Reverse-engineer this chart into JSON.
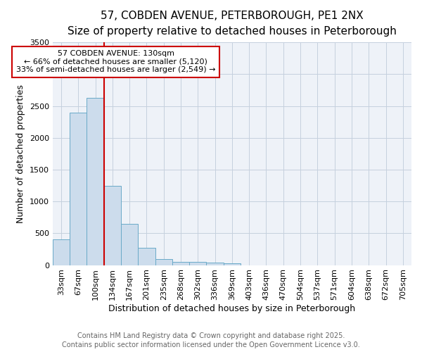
{
  "title1": "57, COBDEN AVENUE, PETERBOROUGH, PE1 2NX",
  "title2": "Size of property relative to detached houses in Peterborough",
  "xlabel": "Distribution of detached houses by size in Peterborough",
  "ylabel": "Number of detached properties",
  "footer1": "Contains HM Land Registry data © Crown copyright and database right 2025.",
  "footer2": "Contains public sector information licensed under the Open Government Licence v3.0.",
  "annotation_line1": "57 COBDEN AVENUE: 130sqm",
  "annotation_line2": "← 66% of detached houses are smaller (5,120)",
  "annotation_line3": "33% of semi-detached houses are larger (2,549) →",
  "bin_labels": [
    "33sqm",
    "67sqm",
    "100sqm",
    "134sqm",
    "167sqm",
    "201sqm",
    "235sqm",
    "268sqm",
    "302sqm",
    "336sqm",
    "369sqm",
    "403sqm",
    "436sqm",
    "470sqm",
    "504sqm",
    "537sqm",
    "571sqm",
    "604sqm",
    "638sqm",
    "672sqm",
    "705sqm"
  ],
  "bar_values": [
    400,
    2400,
    2630,
    1250,
    650,
    270,
    100,
    55,
    50,
    40,
    25,
    0,
    0,
    0,
    0,
    0,
    0,
    0,
    0,
    0,
    0
  ],
  "bar_color": "#ccdcec",
  "bar_edge_color": "#6aaac8",
  "red_line_bin": 3,
  "ylim": [
    0,
    3500
  ],
  "yticks": [
    0,
    500,
    1000,
    1500,
    2000,
    2500,
    3000,
    3500
  ],
  "bg_color": "#eef2f8",
  "grid_color": "#c5d0de",
  "title_fontsize": 11,
  "subtitle_fontsize": 10,
  "axis_label_fontsize": 9,
  "tick_fontsize": 8,
  "annot_fontsize": 8,
  "footer_fontsize": 7,
  "red_color": "#cc0000"
}
